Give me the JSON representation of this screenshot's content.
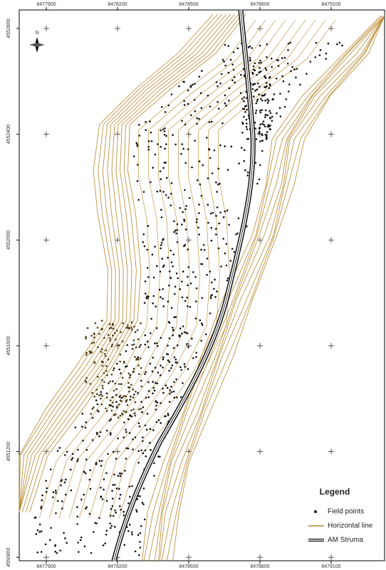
{
  "map": {
    "xlim": [
      8477786,
      8479325
    ],
    "ylim": [
      4550787,
      4552870
    ],
    "xticks": [
      8477900,
      8478200,
      8478500,
      8478800,
      8479100
    ],
    "yticks": [
      4552800,
      4552400,
      4552000,
      4551600,
      4551200,
      4550800
    ],
    "north_label": "N"
  },
  "legend": {
    "title": "Legend",
    "items": [
      "Field points",
      "Horizontal line",
      "AM Struma"
    ]
  }
}
